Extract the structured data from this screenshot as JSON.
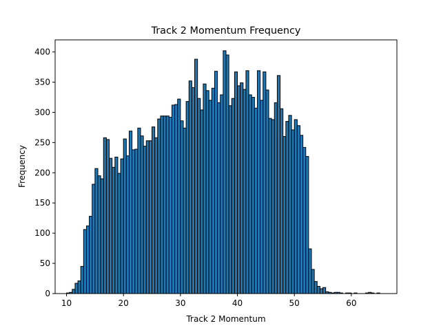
{
  "chart_data": {
    "type": "bar",
    "title": "Track 2 Momentum Frequency",
    "xlabel": "Track 2 Momentum",
    "ylabel": "Frequency",
    "xlim": [
      8,
      68
    ],
    "ylim": [
      0,
      420
    ],
    "xticks": [
      10,
      20,
      30,
      40,
      50,
      60
    ],
    "yticks": [
      0,
      50,
      100,
      150,
      200,
      250,
      300,
      350,
      400
    ],
    "grid": false,
    "bar_color": "#1f77b4",
    "edge_color": "#000000",
    "bin_start": 10.0,
    "bin_width": 0.5,
    "values": [
      1,
      2,
      7,
      17,
      21,
      45,
      106,
      112,
      128,
      181,
      207,
      195,
      190,
      258,
      255,
      224,
      209,
      226,
      199,
      223,
      256,
      228,
      269,
      238,
      239,
      274,
      261,
      244,
      253,
      253,
      276,
      258,
      289,
      294,
      294,
      294,
      292,
      312,
      313,
      322,
      286,
      274,
      318,
      352,
      341,
      388,
      323,
      304,
      347,
      336,
      320,
      340,
      368,
      316,
      329,
      402,
      395,
      311,
      323,
      367,
      344,
      349,
      338,
      369,
      329,
      325,
      307,
      369,
      320,
      367,
      337,
      290,
      288,
      316,
      361,
      306,
      260,
      285,
      295,
      271,
      288,
      278,
      262,
      242,
      227,
      74,
      40,
      20,
      12,
      8,
      10,
      3,
      2,
      1,
      2,
      2,
      1,
      0,
      1,
      1,
      0,
      1,
      0,
      0,
      0,
      1,
      2,
      1,
      0,
      1
    ]
  }
}
